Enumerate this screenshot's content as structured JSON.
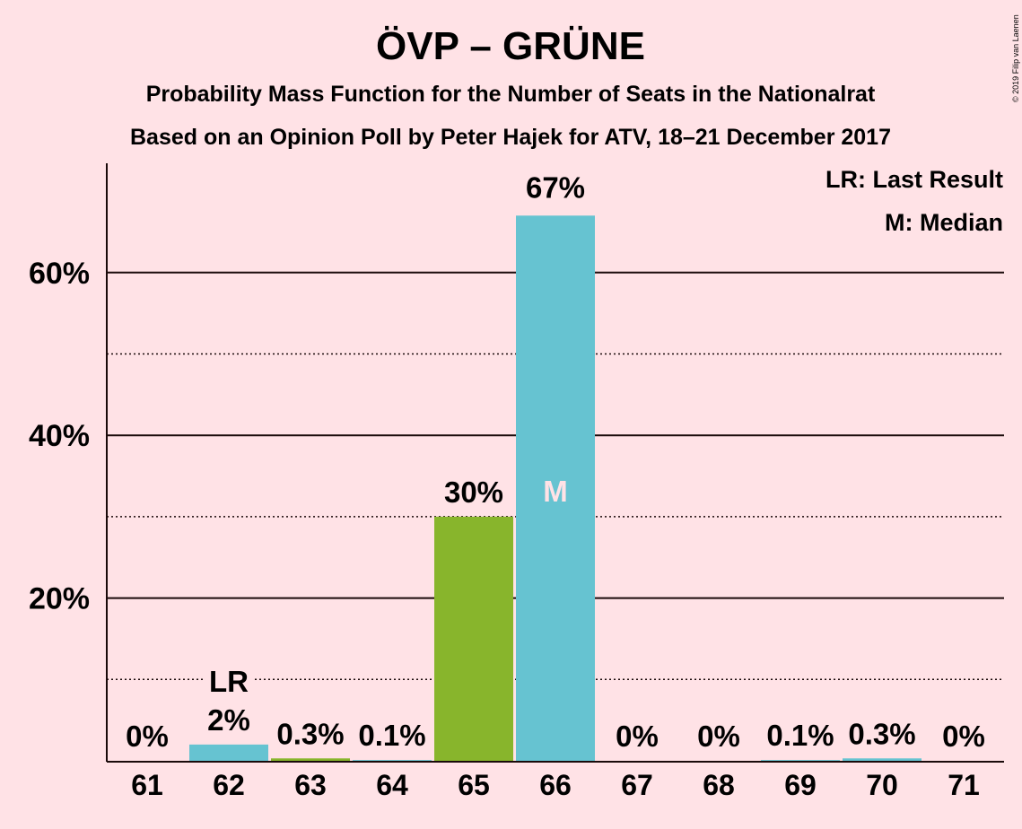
{
  "chart_data": {
    "type": "bar",
    "title": "ÖVP – GRÜNE",
    "subtitle": "Probability Mass Function for the Number of Seats in the Nationalrat",
    "subtitle2": "Based on an Opinion Poll by Peter Hajek for ATV, 18–21 December 2017",
    "copyright": "© 2019 Filip van Laenen",
    "categories": [
      "61",
      "62",
      "63",
      "64",
      "65",
      "66",
      "67",
      "68",
      "69",
      "70",
      "71"
    ],
    "values": [
      0,
      2,
      0.3,
      0.1,
      30,
      67,
      0,
      0,
      0.1,
      0.3,
      0
    ],
    "value_labels": [
      "0%",
      "2%",
      "0.3%",
      "0.1%",
      "30%",
      "67%",
      "0%",
      "0%",
      "0.1%",
      "0.3%",
      "0%"
    ],
    "bar_colors": [
      "#66C3D1",
      "#66C3D1",
      "#88B52C",
      "#66C3D1",
      "#88B52C",
      "#66C3D1",
      "#66C3D1",
      "#66C3D1",
      "#66C3D1",
      "#66C3D1",
      "#66C3D1"
    ],
    "ylim": [
      0,
      73
    ],
    "yticks": [
      20,
      40,
      60
    ],
    "ytick_labels": [
      "20%",
      "40%",
      "60%"
    ],
    "minor_gridlines": [
      10,
      30,
      50
    ],
    "last_result": {
      "category": "62",
      "label": "LR"
    },
    "median": {
      "category": "66",
      "label": "M"
    },
    "legend": [
      "LR: Last Result",
      "M: Median"
    ],
    "legend_position": "top-right",
    "colors": {
      "background": "#FFE2E6",
      "text": "#1a0a0a",
      "median_label": "#FFE2E6"
    }
  }
}
